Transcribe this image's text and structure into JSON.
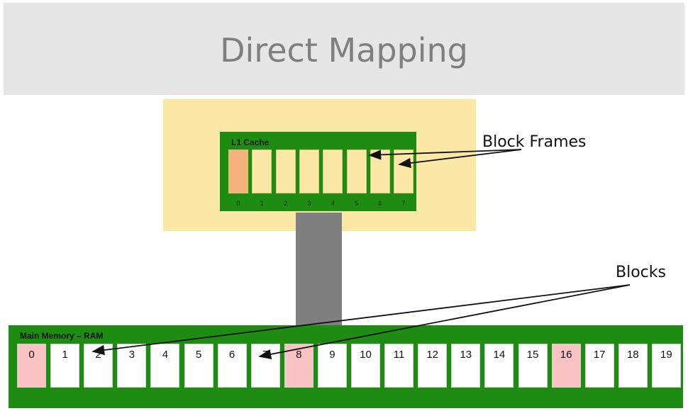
{
  "slide": {
    "title": "Direct Mapping",
    "colors": {
      "title_band": "#e6e6e6",
      "cache_background": "#fbe8a6",
      "container_green": "#1e8c12",
      "cache_highlight": "#f5b37c",
      "ram_highlight": "#f9c3c3",
      "bus": "#7f7f7f"
    }
  },
  "cache": {
    "label": "L1 Cache",
    "frames": [
      {
        "number": "0",
        "highlighted": true
      },
      {
        "number": "1",
        "highlighted": false
      },
      {
        "number": "2",
        "highlighted": false
      },
      {
        "number": "3",
        "highlighted": false
      },
      {
        "number": "4",
        "highlighted": false
      },
      {
        "number": "5",
        "highlighted": false
      },
      {
        "number": "6",
        "highlighted": false
      },
      {
        "number": "7",
        "highlighted": false
      }
    ]
  },
  "ram": {
    "label": "Main Memory – RAM",
    "blocks": [
      {
        "number": "0",
        "highlighted": true
      },
      {
        "number": "1",
        "highlighted": false
      },
      {
        "number": "2",
        "highlighted": false
      },
      {
        "number": "3",
        "highlighted": false
      },
      {
        "number": "4",
        "highlighted": false
      },
      {
        "number": "5",
        "highlighted": false
      },
      {
        "number": "6",
        "highlighted": false
      },
      {
        "number": "7",
        "highlighted": false
      },
      {
        "number": "8",
        "highlighted": true
      },
      {
        "number": "9",
        "highlighted": false
      },
      {
        "number": "10",
        "highlighted": false
      },
      {
        "number": "11",
        "highlighted": false
      },
      {
        "number": "12",
        "highlighted": false
      },
      {
        "number": "13",
        "highlighted": false
      },
      {
        "number": "14",
        "highlighted": false
      },
      {
        "number": "15",
        "highlighted": false
      },
      {
        "number": "16",
        "highlighted": true
      },
      {
        "number": "17",
        "highlighted": false
      },
      {
        "number": "18",
        "highlighted": false
      },
      {
        "number": "19",
        "highlighted": false
      }
    ]
  },
  "callouts": {
    "block_frames": "Block Frames",
    "blocks": "Blocks"
  }
}
